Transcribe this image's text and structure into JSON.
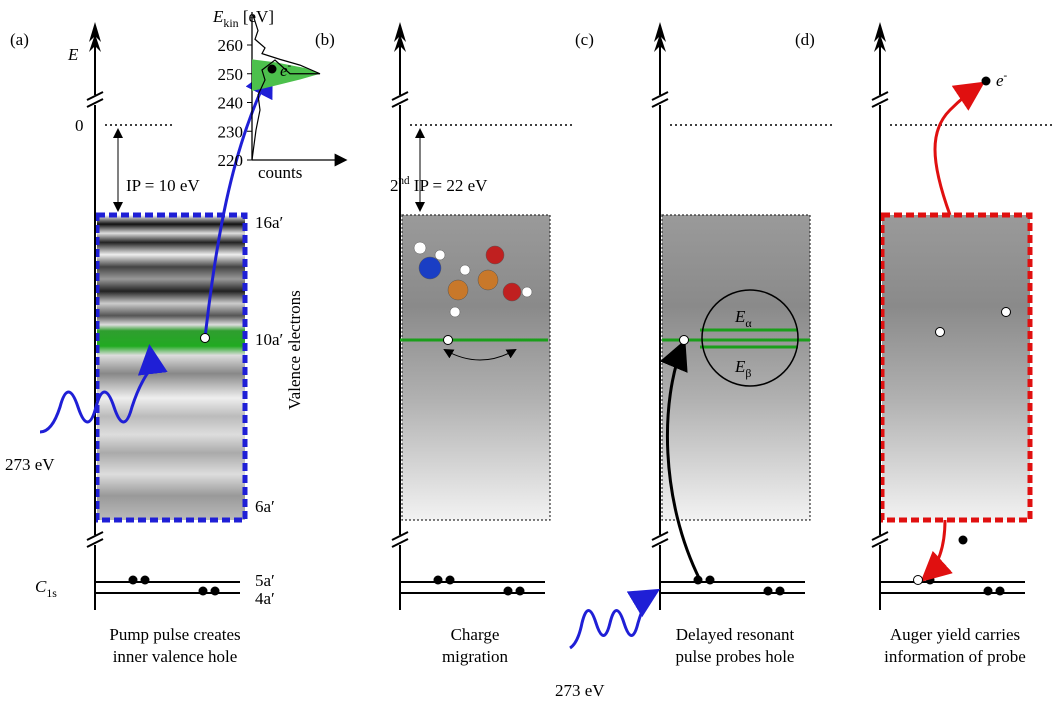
{
  "panels": [
    {
      "label": "(a)",
      "axis_label": "E",
      "zero_label": "0",
      "ip_label": "IP = 10 eV",
      "orbitals": [
        "16a′",
        "10a′",
        "6a′"
      ],
      "core_orbitals": [
        "5a′",
        "4a′"
      ],
      "core_label": {
        "main": "C",
        "sub": "1s"
      },
      "side_label": "Valence electrons",
      "photon_label": "273 eV",
      "caption": [
        "Pump pulse creates",
        "inner valence hole"
      ]
    },
    {
      "label": "(b)",
      "ip_label": {
        "pre": "2",
        "sup": "nd",
        "post": " IP = 22 eV"
      },
      "caption": [
        "Charge",
        "migration"
      ]
    },
    {
      "label": "(c)",
      "energies": [
        {
          "main": "E",
          "sub": "α"
        },
        {
          "main": "E",
          "sub": "β"
        }
      ],
      "photon_label": "273 eV",
      "caption": [
        "Delayed resonant",
        "pulse probes hole"
      ]
    },
    {
      "label": "(d)",
      "electron_label": {
        "main": "e",
        "sup": "-"
      },
      "caption": [
        "Auger yield carries",
        "information of probe"
      ]
    }
  ],
  "inset": {
    "y_label": {
      "main": "E",
      "sub": "kin",
      "unit": " [eV]"
    },
    "yticks": [
      220,
      230,
      240,
      250,
      260
    ],
    "x_label": "counts",
    "electron_label": {
      "main": "e",
      "sup": "-"
    }
  }
}
